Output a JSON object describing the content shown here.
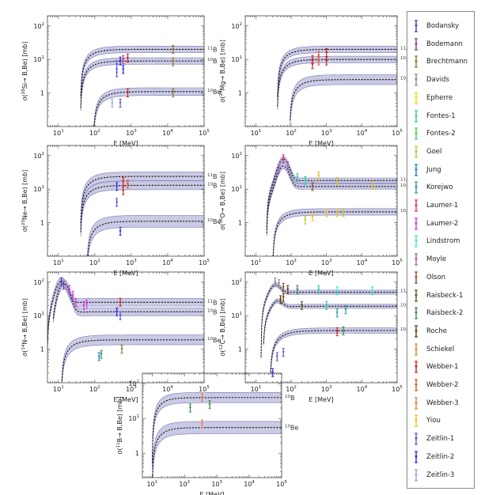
{
  "chart_data": [
    {
      "type": "line",
      "ylabel_pre": "σ(",
      "ylabel_sup": "28",
      "ylabel_post": "Si→ B,Be)  [mb]",
      "xlabel": "E [MeV]",
      "xlim": [
        5,
        100000
      ],
      "ylim": [
        0.1,
        200
      ],
      "xscale": "log",
      "yscale": "log",
      "xticks": [
        {
          "b": "10",
          "e": "1",
          "v": 10
        },
        {
          "b": "10",
          "e": "2",
          "v": 100
        },
        {
          "b": "10",
          "e": "3",
          "v": 1000
        },
        {
          "b": "10",
          "e": "4",
          "v": 10000
        },
        {
          "b": "10",
          "e": "5",
          "v": 100000
        }
      ],
      "yticks": [
        {
          "b": "1",
          "e": "",
          "v": 1
        },
        {
          "b": "10",
          "e": "1",
          "v": 10
        },
        {
          "b": "10",
          "e": "2",
          "v": 100
        }
      ],
      "series": [
        {
          "label_sup": "11",
          "label": "B",
          "thr": 40,
          "plateau": 20,
          "k": 1.5,
          "band": 1.25
        },
        {
          "label_sup": "10",
          "label": "B",
          "thr": 40,
          "plateau": 9,
          "k": 1.5,
          "band": 1.25
        },
        {
          "label_sup": "10",
          "label": "Be",
          "thr": 90,
          "plateau": 1.1,
          "k": 1.5,
          "band": 1.3
        }
      ],
      "points": [
        {
          "x": 400,
          "y": 7,
          "s": "Zeitlin-1"
        },
        {
          "x": 500,
          "y": 9,
          "s": "Zeitlin-2"
        },
        {
          "x": 600,
          "y": 10,
          "s": "Laumer-1"
        },
        {
          "x": 800,
          "y": 11,
          "s": "Webber-1"
        },
        {
          "x": 400,
          "y": 4,
          "s": "Zeitlin-1"
        },
        {
          "x": 600,
          "y": 5,
          "s": "Zeitlin-2"
        },
        {
          "x": 300,
          "y": 0.5,
          "s": "Zeitlin-3"
        },
        {
          "x": 500,
          "y": 0.5,
          "s": "Zeitlin-1"
        },
        {
          "x": 800,
          "y": 1.0,
          "s": "Webber-1"
        },
        {
          "x": 14000,
          "y": 20,
          "s": "Brechtmann"
        },
        {
          "x": 14000,
          "y": 8.5,
          "s": "Brechtmann"
        },
        {
          "x": 14000,
          "y": 1.0,
          "s": "Brechtmann"
        }
      ]
    },
    {
      "type": "line",
      "ylabel_pre": "σ(",
      "ylabel_sup": "24",
      "ylabel_post": "Mg→ B,Be)  [mb]",
      "xlabel": "E [MeV]",
      "xlim": [
        5,
        100000
      ],
      "ylim": [
        0.1,
        200
      ],
      "xscale": "log",
      "yscale": "log",
      "xticks": [
        {
          "b": "10",
          "e": "1",
          "v": 10
        },
        {
          "b": "10",
          "e": "2",
          "v": 100
        },
        {
          "b": "10",
          "e": "3",
          "v": 1000
        },
        {
          "b": "10",
          "e": "4",
          "v": 10000
        },
        {
          "b": "10",
          "e": "5",
          "v": 100000
        }
      ],
      "yticks": [
        {
          "b": "1",
          "e": "",
          "v": 1
        },
        {
          "b": "10",
          "e": "1",
          "v": 10
        },
        {
          "b": "10",
          "e": "2",
          "v": 100
        }
      ],
      "series": [
        {
          "label_sup": "11",
          "label": "B",
          "thr": 40,
          "plateau": 20,
          "k": 1.5,
          "band": 1.25
        },
        {
          "label_sup": "10",
          "label": "B",
          "thr": 40,
          "plateau": 10,
          "k": 1.5,
          "band": 1.25
        },
        {
          "label_sup": "10",
          "label": "Be",
          "thr": 90,
          "plateau": 2.5,
          "k": 1.5,
          "band": 1.4
        }
      ],
      "points": [
        {
          "x": 400,
          "y": 10,
          "s": "Webber-1"
        },
        {
          "x": 600,
          "y": 13,
          "s": "Webber-2"
        },
        {
          "x": 1000,
          "y": 16,
          "s": "Webber-1"
        },
        {
          "x": 400,
          "y": 7,
          "s": "Webber-1"
        },
        {
          "x": 600,
          "y": 9,
          "s": "Webber-2"
        },
        {
          "x": 1000,
          "y": 9,
          "s": "Webber-1"
        }
      ]
    },
    {
      "type": "line",
      "ylabel_pre": "σ(",
      "ylabel_sup": "20",
      "ylabel_post": "Ne→ B,Be)  [mb]",
      "xlabel": "E [MeV]",
      "xlim": [
        5,
        100000
      ],
      "ylim": [
        0.1,
        200
      ],
      "xscale": "log",
      "yscale": "log",
      "xticks": [
        {
          "b": "10",
          "e": "1",
          "v": 10
        },
        {
          "b": "10",
          "e": "2",
          "v": 100
        },
        {
          "b": "10",
          "e": "3",
          "v": 1000
        },
        {
          "b": "10",
          "e": "4",
          "v": 10000
        },
        {
          "b": "10",
          "e": "5",
          "v": 100000
        }
      ],
      "yticks": [
        {
          "b": "1",
          "e": "",
          "v": 1
        },
        {
          "b": "10",
          "e": "1",
          "v": 10
        },
        {
          "b": "10",
          "e": "2",
          "v": 100
        }
      ],
      "series": [
        {
          "label_sup": "11",
          "label": "B",
          "thr": 40,
          "plateau": 24,
          "k": 1.5,
          "band": 1.35
        },
        {
          "label_sup": "10",
          "label": "B",
          "thr": 40,
          "plateau": 13,
          "k": 1.5,
          "band": 1.35
        },
        {
          "label_sup": "10",
          "label": "Be",
          "thr": 60,
          "plateau": 1.1,
          "k": 1.5,
          "band": 1.5
        }
      ],
      "points": [
        {
          "x": 400,
          "y": 12,
          "s": "Zeitlin-2"
        },
        {
          "x": 600,
          "y": 17,
          "s": "Webber-1"
        },
        {
          "x": 800,
          "y": 14,
          "s": "Webber-2"
        },
        {
          "x": 400,
          "y": 4,
          "s": "Zeitlin-1"
        },
        {
          "x": 600,
          "y": 9,
          "s": "Webber-1"
        },
        {
          "x": 500,
          "y": 0.55,
          "s": "Zeitlin-2"
        }
      ]
    },
    {
      "type": "line",
      "ylabel_pre": "σ(",
      "ylabel_sup": "16",
      "ylabel_post": "O→ B,Be)  [mb]",
      "xlabel": "E [MeV]",
      "xlim": [
        5,
        100000
      ],
      "ylim": [
        0.1,
        200
      ],
      "xscale": "log",
      "yscale": "log",
      "xticks": [
        {
          "b": "10",
          "e": "1",
          "v": 10
        },
        {
          "b": "10",
          "e": "2",
          "v": 100
        },
        {
          "b": "10",
          "e": "3",
          "v": 1000
        },
        {
          "b": "10",
          "e": "4",
          "v": 10000
        },
        {
          "b": "10",
          "e": "5",
          "v": 100000
        }
      ],
      "yticks": [
        {
          "b": "1",
          "e": "",
          "v": 1
        },
        {
          "b": "10",
          "e": "1",
          "v": 10
        },
        {
          "b": "10",
          "e": "2",
          "v": 100
        }
      ],
      "series": [
        {
          "label_sup": "11",
          "label": "B",
          "thr": 20,
          "plateau": 18,
          "k": 2.0,
          "band": 1.2,
          "peak": {
            "x": 60,
            "y": 80
          }
        },
        {
          "label_sup": "10",
          "label": "B",
          "thr": 20,
          "plateau": 12,
          "k": 2.0,
          "band": 1.2,
          "peak": {
            "x": 60,
            "y": 50
          }
        },
        {
          "label_sup": "10",
          "label": "Be",
          "thr": 30,
          "plateau": 2.1,
          "k": 1.5,
          "band": 1.25
        }
      ],
      "points": [
        {
          "x": 45,
          "y": 40,
          "s": "Moyle"
        },
        {
          "x": 60,
          "y": 80,
          "s": "Laumer-1"
        },
        {
          "x": 80,
          "y": 50,
          "s": "Moyle"
        },
        {
          "x": 150,
          "y": 22,
          "s": "Fontes-1"
        },
        {
          "x": 250,
          "y": 18,
          "s": "Fontes-1"
        },
        {
          "x": 600,
          "y": 25,
          "s": "Yiou"
        },
        {
          "x": 2000,
          "y": 17,
          "s": "Yiou"
        },
        {
          "x": 20000,
          "y": 13,
          "s": "Yiou"
        },
        {
          "x": 400,
          "y": 12,
          "s": "Olson"
        },
        {
          "x": 250,
          "y": 1.2,
          "s": "Goel"
        },
        {
          "x": 400,
          "y": 1.5,
          "s": "Yiou"
        },
        {
          "x": 1000,
          "y": 2,
          "s": "Yiou"
        },
        {
          "x": 2000,
          "y": 2,
          "s": "Yiou"
        },
        {
          "x": 3000,
          "y": 2,
          "s": "Goel"
        }
      ]
    },
    {
      "type": "line",
      "ylabel_pre": "σ(",
      "ylabel_sup": "14",
      "ylabel_post": "N→ B,Be)  [mb]",
      "xlabel": "E [MeV]",
      "xlim": [
        5,
        100000
      ],
      "ylim": [
        0.1,
        200
      ],
      "xscale": "log",
      "yscale": "log",
      "xticks": [
        {
          "b": "10",
          "e": "1",
          "v": 10
        },
        {
          "b": "10",
          "e": "2",
          "v": 100
        },
        {
          "b": "10",
          "e": "3",
          "v": 1000
        },
        {
          "b": "10",
          "e": "4",
          "v": 10000
        },
        {
          "b": "10",
          "e": "5",
          "v": 100000
        }
      ],
      "yticks": [
        {
          "b": "1",
          "e": "",
          "v": 1
        },
        {
          "b": "10",
          "e": "1",
          "v": 10
        },
        {
          "b": "10",
          "e": "2",
          "v": 100
        }
      ],
      "series": [
        {
          "label_sup": "11",
          "label": "B",
          "thr": 5,
          "plateau": 25,
          "k": 2.0,
          "band": 1.3,
          "peak": {
            "x": 12,
            "y": 110
          }
        },
        {
          "label_sup": "10",
          "label": "B",
          "thr": 7,
          "plateau": 13,
          "k": 2.0,
          "band": 1.3,
          "peak": {
            "x": 14,
            "y": 95
          }
        },
        {
          "label_sup": "10",
          "label": "Be",
          "thr": 12,
          "plateau": 1.9,
          "k": 1.4,
          "band": 1.4
        }
      ],
      "points": [
        {
          "x": 12,
          "y": 100,
          "s": "Bodansky"
        },
        {
          "x": 14,
          "y": 80,
          "s": "Bodemann"
        },
        {
          "x": 20,
          "y": 60,
          "s": "Laumer-2"
        },
        {
          "x": 25,
          "y": 40,
          "s": "Laumer-2"
        },
        {
          "x": 30,
          "y": 25,
          "s": "Laumer-2"
        },
        {
          "x": 50,
          "y": 20,
          "s": "Laumer-2"
        },
        {
          "x": 60,
          "y": 22,
          "s": "Laumer-2"
        },
        {
          "x": 500,
          "y": 25,
          "s": "Webber-1"
        },
        {
          "x": 400,
          "y": 13,
          "s": "Zeitlin-2"
        },
        {
          "x": 500,
          "y": 10,
          "s": "Zeitlin-1"
        },
        {
          "x": 130,
          "y": 0.6,
          "s": "Jung"
        },
        {
          "x": 150,
          "y": 0.7,
          "s": "Raisbeck-2"
        },
        {
          "x": 550,
          "y": 1.0,
          "s": "Brechtmann"
        }
      ]
    },
    {
      "type": "line",
      "ylabel_pre": "σ(",
      "ylabel_sup": "12",
      "ylabel_post": "C→ B,Be)  [mb]",
      "xlabel": "E [MeV]",
      "xlim": [
        5,
        100000
      ],
      "ylim": [
        0.1,
        200
      ],
      "xscale": "log",
      "yscale": "log",
      "xticks": [
        {
          "b": "10",
          "e": "1",
          "v": 10
        },
        {
          "b": "10",
          "e": "2",
          "v": 100
        },
        {
          "b": "10",
          "e": "3",
          "v": 1000
        },
        {
          "b": "10",
          "e": "4",
          "v": 10000
        },
        {
          "b": "10",
          "e": "5",
          "v": 100000
        }
      ],
      "yticks": [
        {
          "b": "1",
          "e": "",
          "v": 1
        },
        {
          "b": "10",
          "e": "1",
          "v": 10
        },
        {
          "b": "10",
          "e": "2",
          "v": 100
        }
      ],
      "series": [
        {
          "label_sup": "11",
          "label": "B",
          "thr": 14,
          "plateau": 50,
          "k": 2.0,
          "band": 1.15,
          "peak": {
            "x": 35,
            "y": 90
          }
        },
        {
          "label_sup": "10",
          "label": "B",
          "thr": 16,
          "plateau": 19,
          "k": 2.0,
          "band": 1.15,
          "peak": {
            "x": 40,
            "y": 30
          }
        },
        {
          "label_sup": "10",
          "label": "Be",
          "thr": 25,
          "plateau": 3.6,
          "k": 1.3,
          "band": 1.2
        }
      ],
      "points": [
        {
          "x": 35,
          "y": 100,
          "s": "Davids"
        },
        {
          "x": 45,
          "y": 90,
          "s": "Davids"
        },
        {
          "x": 60,
          "y": 70,
          "s": "Olson"
        },
        {
          "x": 80,
          "y": 60,
          "s": "Roche"
        },
        {
          "x": 150,
          "y": 60,
          "s": "Raisbeck-2"
        },
        {
          "x": 600,
          "y": 60,
          "s": "Fontes-1"
        },
        {
          "x": 2000,
          "y": 55,
          "s": "Lindstrom"
        },
        {
          "x": 20000,
          "y": 55,
          "s": "Lindstrom"
        },
        {
          "x": 50,
          "y": 30,
          "s": "Roche"
        },
        {
          "x": 60,
          "y": 35,
          "s": "Roche"
        },
        {
          "x": 200,
          "y": 20,
          "s": "Raisbeck-1"
        },
        {
          "x": 1000,
          "y": 20,
          "s": "Fontes-1"
        },
        {
          "x": 2000,
          "y": 12,
          "s": "Korejwo"
        },
        {
          "x": 3500,
          "y": 15,
          "s": "Korejwo"
        },
        {
          "x": 30,
          "y": 0.2,
          "s": "Zeitlin-2"
        },
        {
          "x": 40,
          "y": 0.6,
          "s": "Zeitlin-1"
        },
        {
          "x": 60,
          "y": 0.8,
          "s": "Zeitlin-1"
        },
        {
          "x": 2000,
          "y": 3.3,
          "s": "Webber-1"
        },
        {
          "x": 3000,
          "y": 3.5,
          "s": "Raisbeck-2"
        }
      ]
    },
    {
      "type": "line",
      "ylabel_pre": "σ(",
      "ylabel_sup": "11",
      "ylabel_post": "B→ B,Be)  [mb]",
      "xlabel": "E [MeV]",
      "xlim": [
        5,
        100000
      ],
      "ylim": [
        0.2,
        200
      ],
      "xscale": "log",
      "yscale": "log",
      "xticks": [
        {
          "b": "10",
          "e": "1",
          "v": 10
        },
        {
          "b": "10",
          "e": "2",
          "v": 100
        },
        {
          "b": "10",
          "e": "3",
          "v": 1000
        },
        {
          "b": "10",
          "e": "4",
          "v": 10000
        },
        {
          "b": "10",
          "e": "5",
          "v": 100000
        }
      ],
      "yticks": [
        {
          "b": "1",
          "e": "",
          "v": 1
        },
        {
          "b": "10",
          "e": "1",
          "v": 10
        },
        {
          "b": "10",
          "e": "2",
          "v": 100
        }
      ],
      "series": [
        {
          "label_sup": "10",
          "label": "B",
          "thr": 10,
          "plateau": 40,
          "k": 1.5,
          "band": 1.4
        },
        {
          "label_sup": "10",
          "label": "Be",
          "thr": 10,
          "plateau": 5.5,
          "k": 1.4,
          "band": 1.5
        }
      ],
      "points": [
        {
          "x": 150,
          "y": 20,
          "s": "Raisbeck-2"
        },
        {
          "x": 600,
          "y": 25,
          "s": "Raisbeck-2"
        },
        {
          "x": 350,
          "y": 40,
          "s": "Webber-3"
        },
        {
          "x": 350,
          "y": 7,
          "s": "Webber-3"
        }
      ]
    }
  ],
  "legend": [
    {
      "label": "Bodansky",
      "color": "#3f3fbf"
    },
    {
      "label": "Bodemann",
      "color": "#8b3a8b"
    },
    {
      "label": "Brechtmann",
      "color": "#8b7a2a"
    },
    {
      "label": "Davids",
      "color": "#8c8c8c"
    },
    {
      "label": "Epherre",
      "color": "#e8e000"
    },
    {
      "label": "Fontes-1",
      "color": "#35c9a6"
    },
    {
      "label": "Fontes-2",
      "color": "#4cd24c"
    },
    {
      "label": "Goel",
      "color": "#b8c92a"
    },
    {
      "label": "Jung",
      "color": "#1f7fd4"
    },
    {
      "label": "Korejwo",
      "color": "#2a9ab0"
    },
    {
      "label": "Laumer-1",
      "color": "#e0307a"
    },
    {
      "label": "Laumer-2",
      "color": "#d23ad2"
    },
    {
      "label": "Lindstrom",
      "color": "#47e0e0"
    },
    {
      "label": "Moyle",
      "color": "#b25cb8"
    },
    {
      "label": "Olson",
      "color": "#8a5030"
    },
    {
      "label": "Raisbeck-1",
      "color": "#5e5a1a"
    },
    {
      "label": "Raisbeck-2",
      "color": "#3a8a4a"
    },
    {
      "label": "Roche",
      "color": "#6a3a10"
    },
    {
      "label": "Schiekel",
      "color": "#e08a2a"
    },
    {
      "label": "Webber-1",
      "color": "#d42020"
    },
    {
      "label": "Webber-2",
      "color": "#e05a2a"
    },
    {
      "label": "Webber-3",
      "color": "#f07a4a"
    },
    {
      "label": "Yiou",
      "color": "#f0c020"
    },
    {
      "label": "Zeitlin-1",
      "color": "#5a5ad8"
    },
    {
      "label": "Zeitlin-2",
      "color": "#2a2ae0"
    },
    {
      "label": "Zeitlin-3",
      "color": "#8aa8f0"
    }
  ],
  "style": {
    "band_color": "#b8b8dc",
    "band_edge": "#7a7ab8",
    "curve_color": "#111111"
  }
}
